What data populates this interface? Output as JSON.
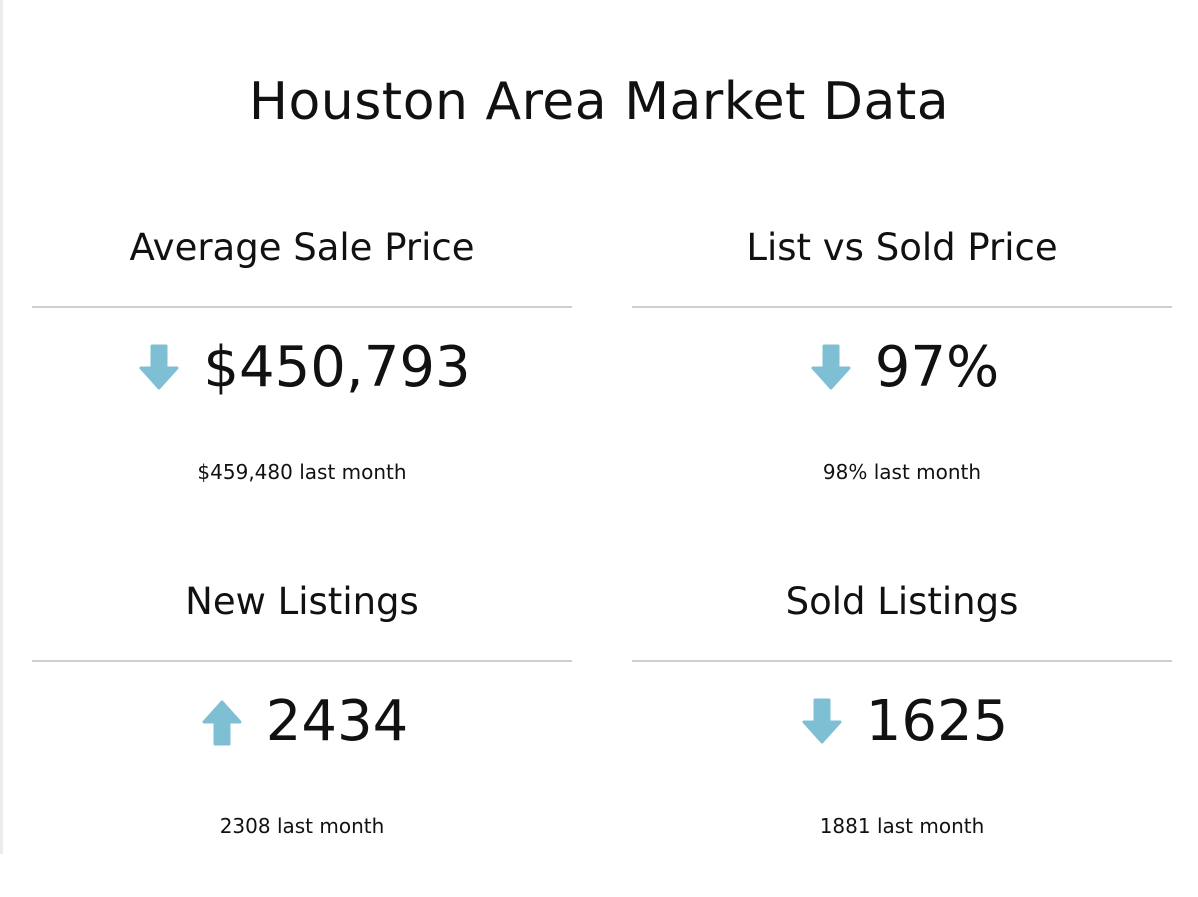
{
  "page": {
    "title": "Houston Area Market Data"
  },
  "colors": {
    "arrow": "#7fbfd3",
    "divider": "#cfcfcf",
    "text": "#111111"
  },
  "metrics": [
    {
      "title": "Average Sale Price",
      "value": "$450,793",
      "trend": "down",
      "icon": "arrow-down-icon",
      "previous": "$459,480 last month"
    },
    {
      "title": "List vs Sold Price",
      "value": "97%",
      "trend": "down",
      "icon": "arrow-down-icon",
      "previous": "98% last month"
    },
    {
      "title": "New Listings",
      "value": "2434",
      "trend": "up",
      "icon": "arrow-up-icon",
      "previous": "2308 last month"
    },
    {
      "title": "Sold Listings",
      "value": "1625",
      "trend": "down",
      "icon": "arrow-down-icon",
      "previous": "1881 last month"
    }
  ]
}
